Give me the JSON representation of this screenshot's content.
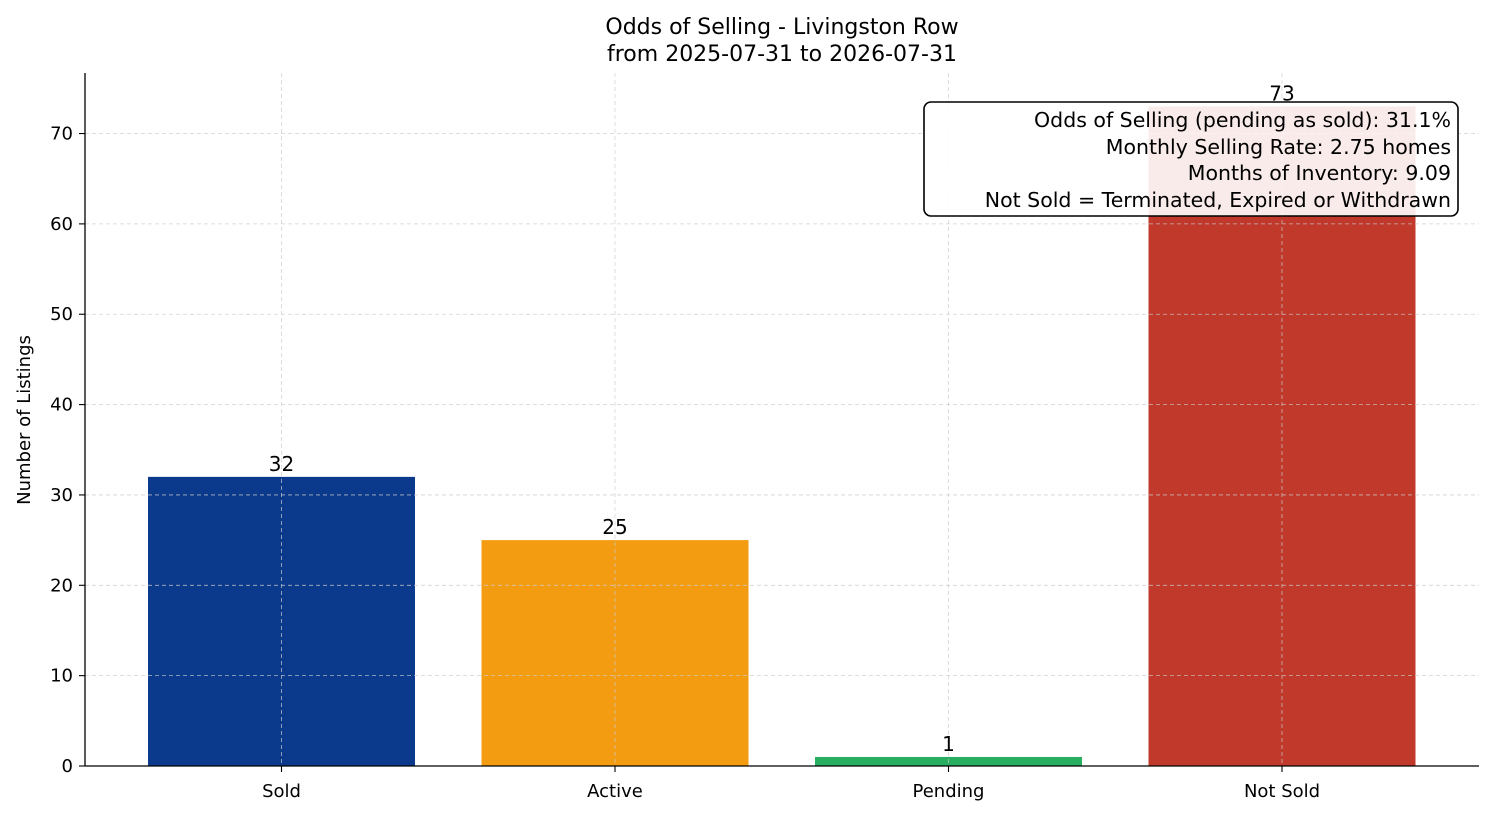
{
  "chart_data": {
    "type": "bar",
    "title": "Odds of Selling - Livingston Row",
    "subtitle": "from 2025-07-31 to 2026-07-31",
    "xlabel": "",
    "ylabel": "Number of Listings",
    "categories": [
      "Sold",
      "Active",
      "Pending",
      "Not Sold"
    ],
    "values": [
      32,
      25,
      1,
      73
    ],
    "colors": [
      "#0b3a8c",
      "#f39c12",
      "#27ae60",
      "#c0392b"
    ],
    "ylim": [
      0,
      76.7
    ],
    "yticks": [
      0,
      10,
      20,
      30,
      40,
      50,
      60,
      70
    ],
    "grid": true,
    "legend": "none",
    "annotation": {
      "placement": "top-right",
      "lines": [
        "Odds of Selling (pending as sold): 31.1%",
        "Monthly Selling Rate: 2.75 homes",
        "Months of Inventory: 9.09",
        "Not Sold = Terminated, Expired or Withdrawn"
      ]
    }
  }
}
